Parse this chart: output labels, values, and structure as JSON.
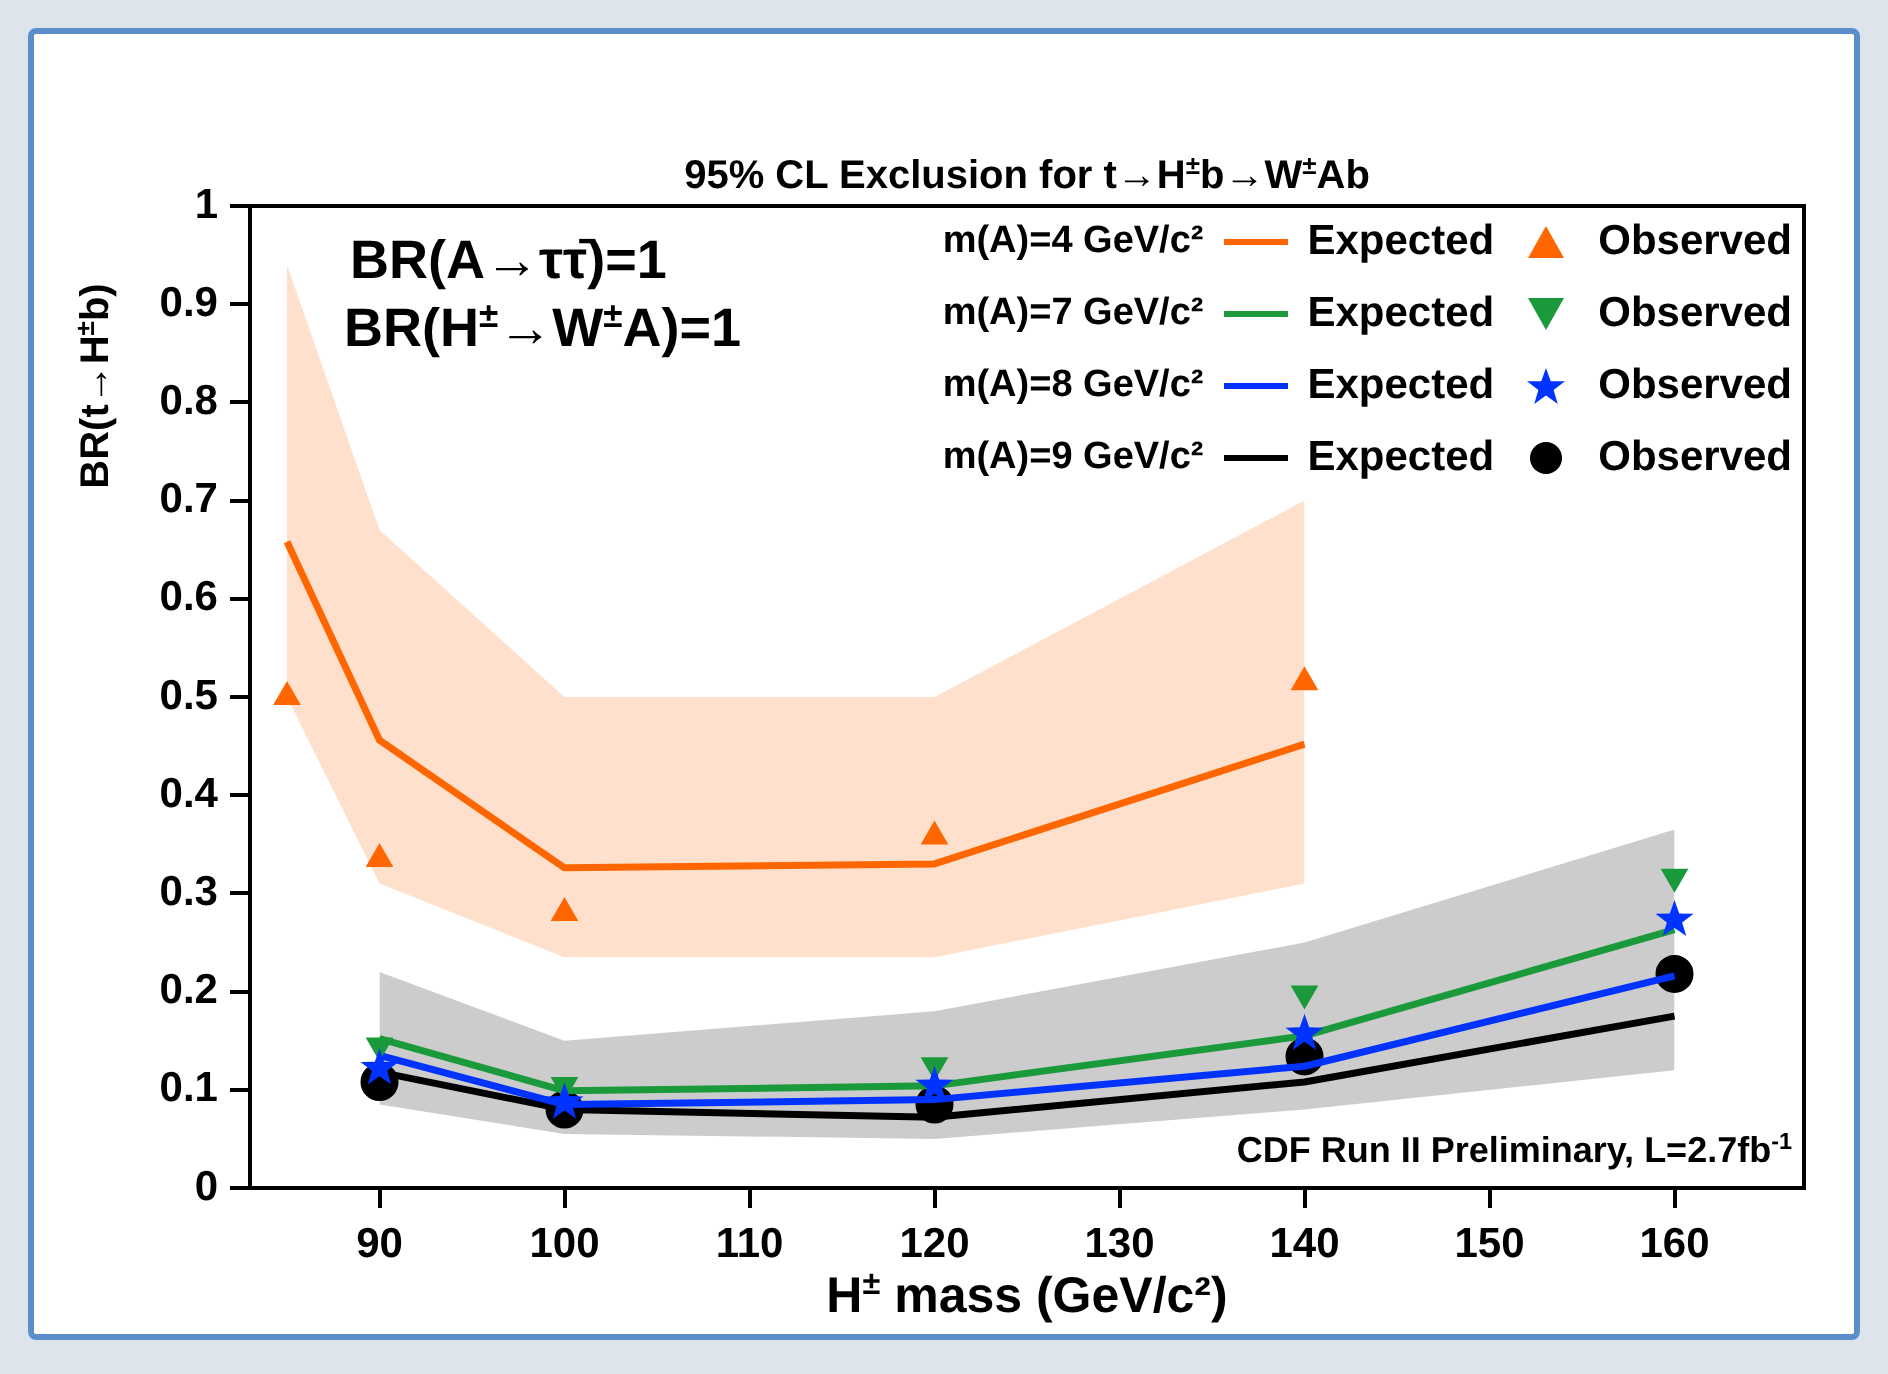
{
  "chart_data": {
    "type": "line",
    "title": "95% CL Exclusion for t→H$^{±}$b→W$^{±}$Ab",
    "xlabel": "H$^{±}$ mass (GeV/c²)",
    "ylabel": "BR(t→H$^{±}$b)",
    "annotations": [
      "BR(A→ττ̄)=1",
      "BR(H$^{±}$→W$^{±}$A)=1",
      "CDF Run II Preliminary, L=2.7fb$^{-1}$",
      "m(A)=4 GeV/c²",
      "m(A)=7 GeV/c²",
      "m(A)=8 GeV/c²",
      "m(A)=9 GeV/c²"
    ],
    "xlim": [
      83,
      167
    ],
    "xticks": [
      90,
      100,
      110,
      120,
      130,
      140,
      150,
      160
    ],
    "ylim": [
      0,
      1
    ],
    "yticks": [
      0,
      0.1,
      0.2,
      0.3,
      0.4,
      0.5,
      0.6,
      0.7,
      0.8,
      0.9,
      1
    ],
    "grid": false,
    "legend": "top right",
    "series": [
      {
        "name": "Expected",
        "marker": "none",
        "color": "#ff6600",
        "x": [
          85,
          90,
          100,
          120,
          140
        ],
        "values": [
          0.658,
          0.456,
          0.326,
          0.33,
          0.452
        ],
        "lower": [
          0.5,
          0.31,
          0.235,
          0.235,
          0.31
        ],
        "upper": [
          0.94,
          0.67,
          0.5,
          0.5,
          0.7
        ]
      },
      {
        "name": "Observed",
        "type": "scatter",
        "marker": "triangle",
        "color": "#ff6600",
        "x": [
          85,
          90,
          100,
          120,
          140
        ],
        "values": [
          0.5,
          0.335,
          0.28,
          0.358,
          0.515
        ]
      },
      {
        "name": "Expected",
        "marker": "none",
        "color": "#1a9a3a",
        "x": [
          90,
          100,
          120,
          140,
          160
        ],
        "values": [
          0.152,
          0.099,
          0.104,
          0.155,
          0.263
        ]
      },
      {
        "name": "Observed",
        "type": "scatter",
        "marker": "triangle_down",
        "color": "#1a9a3a",
        "x": [
          90,
          100,
          120,
          140,
          160
        ],
        "values": [
          0.145,
          0.105,
          0.125,
          0.198,
          0.317
        ]
      },
      {
        "name": "Expected",
        "marker": "none",
        "color": "#0033ff",
        "x": [
          90,
          100,
          120,
          140,
          160
        ],
        "values": [
          0.135,
          0.085,
          0.09,
          0.124,
          0.216
        ]
      },
      {
        "name": "Observed",
        "type": "scatter",
        "marker": "star",
        "color": "#0033ff",
        "x": [
          90,
          100,
          120,
          140,
          160
        ],
        "values": [
          0.122,
          0.087,
          0.104,
          0.157,
          0.273
        ]
      },
      {
        "name": "Expected",
        "marker": "none",
        "color": "#000000",
        "x": [
          90,
          100,
          120,
          140,
          160
        ],
        "values": [
          0.118,
          0.08,
          0.072,
          0.108,
          0.175
        ],
        "lower": [
          0.085,
          0.055,
          0.05,
          0.08,
          0.12
        ],
        "upper": [
          0.22,
          0.15,
          0.18,
          0.25,
          0.365
        ]
      },
      {
        "name": "Observed",
        "type": "scatter",
        "marker": "circle",
        "color": "#000000",
        "x": [
          90,
          100,
          120,
          140,
          160
        ],
        "values": [
          0.108,
          0.08,
          0.085,
          0.134,
          0.218
        ]
      }
    ]
  }
}
